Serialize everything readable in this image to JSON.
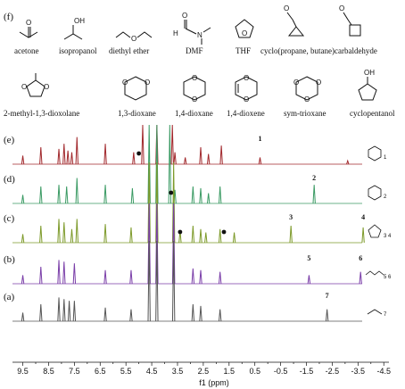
{
  "figure": {
    "panel_f": "(f)",
    "compounds": [
      {
        "name": "acetone",
        "icon": "acetone-structure"
      },
      {
        "name": "isopropanol",
        "icon": "isopropanol-structure"
      },
      {
        "name": "diethyl ether",
        "icon": "diethyl-ether-structure"
      },
      {
        "name": "DMF",
        "icon": "dmf-structure"
      },
      {
        "name": "THF",
        "icon": "thf-structure"
      },
      {
        "name": "cyclo(propane, butane)carbaldehyde",
        "icon": "cycloalkane-carbaldehyde-structures"
      },
      {
        "name": "2-methyl-1,3-dioxolane",
        "icon": "methyl-dioxolane-structure"
      },
      {
        "name": "1,3-dioxane",
        "icon": "dioxane-13-structure"
      },
      {
        "name": "1,4-dioxane",
        "icon": "dioxane-14-structure"
      },
      {
        "name": "1,4-dioxene",
        "icon": "dioxene-structure"
      },
      {
        "name": "sym-trioxane",
        "icon": "trioxane-structure"
      },
      {
        "name": "cyclopentanol",
        "icon": "cyclopentanol-structure"
      }
    ],
    "atom_labels": {
      "O": "O",
      "OH": "OH",
      "N": "N",
      "H": "H"
    }
  },
  "chart_data": {
    "type": "line",
    "xlabel": "f1 (ppm)",
    "xlim": [
      9.9,
      -4.7
    ],
    "x_reversed": true,
    "xticks": [
      "9.5",
      "8.5",
      "7.5",
      "6.5",
      "5.5",
      "4.5",
      "3.5",
      "2.5",
      "1.5",
      "0.5",
      "-0.5",
      "-1.5",
      "-2.5",
      "-3.5",
      "-4.5"
    ],
    "series": [
      {
        "panel": "(e)",
        "color": "#a1282c",
        "peaks": [
          [
            9.5,
            0.25
          ],
          [
            8.8,
            0.5
          ],
          [
            8.1,
            0.45
          ],
          [
            7.9,
            0.6
          ],
          [
            7.75,
            0.4
          ],
          [
            7.6,
            0.35
          ],
          [
            7.4,
            0.8
          ],
          [
            6.3,
            0.6
          ],
          [
            5.2,
            0.35
          ],
          [
            4.85,
            1.0
          ],
          [
            4.3,
            1.0
          ],
          [
            3.7,
            1.0
          ],
          [
            3.6,
            0.35
          ],
          [
            3.2,
            0.2
          ],
          [
            2.6,
            0.5
          ],
          [
            2.3,
            0.3
          ],
          [
            1.8,
            0.55
          ],
          [
            0.3,
            0.2
          ],
          [
            -3.1,
            0.1
          ]
        ],
        "annotations": [
          {
            "text": "1",
            "x": 0.3
          }
        ],
        "molecule": "trioxane",
        "subscript": "1"
      },
      {
        "panel": "(d)",
        "color": "#3a9a63",
        "peaks": [
          [
            9.5,
            0.25
          ],
          [
            8.8,
            0.5
          ],
          [
            8.1,
            0.55
          ],
          [
            7.8,
            0.5
          ],
          [
            7.4,
            0.75
          ],
          [
            6.3,
            0.55
          ],
          [
            5.25,
            0.45
          ],
          [
            4.6,
            1.0
          ],
          [
            4.3,
            1.0
          ],
          [
            3.8,
            1.0
          ],
          [
            3.6,
            0.4
          ],
          [
            2.9,
            0.5
          ],
          [
            2.6,
            0.45
          ],
          [
            2.3,
            0.3
          ],
          [
            1.85,
            0.5
          ],
          [
            -1.8,
            0.55
          ]
        ],
        "annotations": [
          {
            "text": "2",
            "x": -1.8
          }
        ],
        "molecule": "dioxane-14",
        "subscript": "2"
      },
      {
        "panel": "(c)",
        "color": "#7d9a2a",
        "peaks": [
          [
            9.5,
            0.25
          ],
          [
            8.8,
            0.5
          ],
          [
            8.1,
            0.7
          ],
          [
            7.9,
            0.6
          ],
          [
            7.6,
            0.4
          ],
          [
            7.4,
            0.7
          ],
          [
            6.3,
            0.55
          ],
          [
            5.3,
            0.45
          ],
          [
            4.6,
            1.0
          ],
          [
            4.3,
            1.0
          ],
          [
            3.65,
            1.0
          ],
          [
            3.4,
            0.35
          ],
          [
            2.9,
            0.5
          ],
          [
            2.6,
            0.4
          ],
          [
            2.4,
            0.3
          ],
          [
            1.85,
            0.4
          ],
          [
            1.3,
            0.3
          ],
          [
            -0.9,
            0.5
          ],
          [
            -3.7,
            0.45
          ]
        ],
        "annotations": [
          {
            "text": "3",
            "x": -0.9
          },
          {
            "text": "4",
            "x": -3.7
          }
        ],
        "molecule": "thf",
        "subscript": "3 4"
      },
      {
        "panel": "(b)",
        "color": "#7a3ea8",
        "peaks": [
          [
            9.5,
            0.25
          ],
          [
            8.8,
            0.5
          ],
          [
            8.1,
            0.7
          ],
          [
            7.9,
            0.65
          ],
          [
            7.5,
            0.6
          ],
          [
            6.3,
            0.4
          ],
          [
            5.3,
            0.4
          ],
          [
            4.6,
            1.0
          ],
          [
            4.3,
            1.0
          ],
          [
            3.65,
            1.0
          ],
          [
            2.9,
            0.45
          ],
          [
            2.6,
            0.4
          ],
          [
            1.85,
            0.35
          ],
          [
            -1.6,
            0.25
          ],
          [
            -3.6,
            0.35
          ]
        ],
        "annotations": [
          {
            "text": "5",
            "x": -1.6
          },
          {
            "text": "6",
            "x": -3.6
          }
        ],
        "molecule": "diethyl-ether",
        "subscript": "5 6"
      },
      {
        "panel": "(a)",
        "color": "#555555",
        "peaks": [
          [
            9.5,
            0.25
          ],
          [
            8.8,
            0.5
          ],
          [
            8.1,
            0.7
          ],
          [
            7.9,
            0.65
          ],
          [
            7.7,
            0.6
          ],
          [
            7.5,
            0.6
          ],
          [
            6.3,
            0.4
          ],
          [
            5.3,
            0.35
          ],
          [
            4.6,
            1.0
          ],
          [
            4.3,
            1.0
          ],
          [
            3.65,
            1.0
          ],
          [
            2.9,
            0.5
          ],
          [
            2.6,
            0.45
          ],
          [
            1.85,
            0.35
          ],
          [
            -2.3,
            0.35
          ]
        ],
        "annotations": [
          {
            "text": "7",
            "x": -2.3
          }
        ],
        "molecule": "acetone",
        "subscript": "7"
      }
    ],
    "markers": [
      {
        "panel": "(e)",
        "x": 5.0,
        "symbol": "dot"
      },
      {
        "panel": "(d)",
        "x": 3.75,
        "symbol": "dot"
      },
      {
        "panel": "(c)",
        "x": 3.4,
        "symbol": "dot"
      },
      {
        "panel": "(c)",
        "x": 1.7,
        "symbol": "dot"
      }
    ]
  }
}
